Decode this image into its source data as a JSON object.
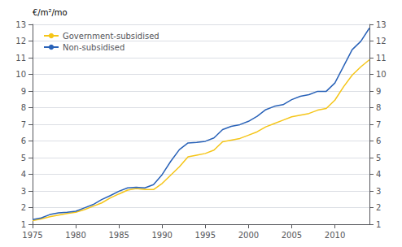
{
  "chart_data": {
    "type": "line",
    "ylabel": "€/m²/mo",
    "x": [
      1975,
      1976,
      1977,
      1978,
      1979,
      1980,
      1981,
      1982,
      1983,
      1984,
      1985,
      1986,
      1987,
      1988,
      1989,
      1990,
      1991,
      1992,
      1993,
      1994,
      1995,
      1996,
      1997,
      1998,
      1999,
      2000,
      2001,
      2002,
      2003,
      2004,
      2005,
      2006,
      2007,
      2008,
      2009,
      2010,
      2011,
      2012,
      2013,
      2014
    ],
    "series": [
      {
        "name": "Government-subsidised",
        "color": "#f5c518",
        "values": [
          1.22,
          1.32,
          1.45,
          1.55,
          1.65,
          1.72,
          1.88,
          2.08,
          2.28,
          2.58,
          2.82,
          3.05,
          3.15,
          3.08,
          3.08,
          3.45,
          3.95,
          4.45,
          5.05,
          5.15,
          5.25,
          5.45,
          5.95,
          6.05,
          6.15,
          6.35,
          6.55,
          6.85,
          7.05,
          7.25,
          7.45,
          7.55,
          7.65,
          7.85,
          7.95,
          8.45,
          9.25,
          9.95,
          10.45,
          10.88
        ]
      },
      {
        "name": "Non-subsidised",
        "color": "#2962b8",
        "values": [
          1.28,
          1.38,
          1.58,
          1.68,
          1.72,
          1.78,
          1.98,
          2.18,
          2.48,
          2.72,
          2.98,
          3.18,
          3.22,
          3.18,
          3.38,
          3.98,
          4.78,
          5.48,
          5.88,
          5.92,
          5.98,
          6.18,
          6.68,
          6.88,
          6.98,
          7.18,
          7.48,
          7.88,
          8.08,
          8.18,
          8.48,
          8.68,
          8.78,
          8.98,
          8.98,
          9.48,
          10.48,
          11.48,
          11.98,
          12.78
        ]
      }
    ],
    "xlim": [
      1975,
      2014
    ],
    "xticks": [
      1975,
      1980,
      1985,
      1990,
      1995,
      2000,
      2005,
      2010
    ],
    "ylim": [
      1,
      13
    ],
    "yticks": [
      1,
      2,
      3,
      4,
      5,
      6,
      7,
      8,
      9,
      10,
      11,
      12,
      13
    ],
    "y2lim": [
      1,
      13
    ],
    "y2ticks": [
      1,
      2,
      3,
      4,
      5,
      6,
      7,
      8,
      9,
      10,
      11,
      12,
      13
    ],
    "grid": true,
    "legend": "upper left"
  }
}
